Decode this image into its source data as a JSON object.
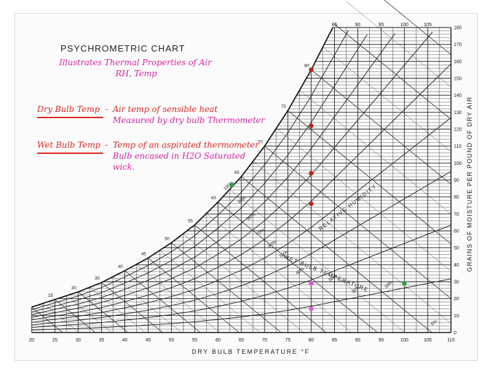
{
  "chart_data": {
    "type": "psychrometric",
    "title": "PSYCHROMETRIC CHART",
    "xlabel": "DRY BULB TEMPERATURE °F",
    "ylabel": "GRAINS OF MOISTURE PER POUND OF DRY AIR",
    "xlim": [
      20,
      110
    ],
    "ylim": [
      0,
      180
    ],
    "x_ticks": [
      "20",
      "25",
      "30",
      "35",
      "40",
      "45",
      "50",
      "55",
      "60",
      "65",
      "70",
      "75",
      "80",
      "85",
      "90",
      "95",
      "100",
      "105",
      "110"
    ],
    "y_ticks": [
      "0",
      "10",
      "20",
      "30",
      "40",
      "50",
      "60",
      "70",
      "80",
      "90",
      "100",
      "110",
      "120",
      "130",
      "140",
      "150",
      "160",
      "170",
      "180"
    ],
    "top_ticks": [
      "85",
      "90",
      "95",
      "100",
      "105"
    ],
    "saturation_curve": {
      "x": [
        20,
        25,
        30,
        35,
        40,
        45,
        50,
        55,
        60,
        65,
        70,
        75,
        80,
        85
      ],
      "y": [
        15,
        19.5,
        24,
        29.5,
        36.5,
        44,
        53,
        63.5,
        77,
        92,
        110,
        131,
        155,
        182
      ]
    },
    "wet_bulb_labels": [
      "25",
      "30",
      "35",
      "40",
      "45",
      "50",
      "55",
      "60",
      "65",
      "70",
      "75",
      "80",
      "85"
    ],
    "rh_labels": [
      "100%",
      "90%",
      "80%",
      "70%",
      "60%",
      "50%",
      "40%",
      "30%",
      "20%",
      "10%",
      "6%"
    ],
    "axis_text": [
      "RELATIVE HUMIDITY",
      "WET BULB TEMPERATURE"
    ],
    "points": [
      {
        "x": 80,
        "y": 155,
        "color": "#b3261e"
      },
      {
        "x": 80,
        "y": 122,
        "color": "#b3261e"
      },
      {
        "x": 80,
        "y": 94,
        "color": "#b3261e"
      },
      {
        "x": 80,
        "y": 76,
        "color": "#b3261e"
      },
      {
        "x": 80,
        "y": 29,
        "color": "#d65bd3"
      },
      {
        "x": 80,
        "y": 14,
        "color": "#d65bd3"
      },
      {
        "x": 63,
        "y": 87,
        "color": "#2e9e3e"
      },
      {
        "x": 100,
        "y": 29,
        "color": "#2e9e3e"
      }
    ],
    "grid": true
  },
  "annotations": {
    "line1": "Illustrates Thermal Properties of Air",
    "line2": "RH, Temp",
    "dry_label": "Dry Bulb Temp",
    "dry_dash": "-",
    "dry_desc1": "Air temp of sensible heat",
    "dry_desc2": "Measured by dry bulb Thermometer",
    "wet_label": "Wet Bulb Temp",
    "wet_dash": "-",
    "wet_desc1": "Temp of an aspirated thermometer",
    "wet_desc2": "Bulb encased in H2O Saturated",
    "wet_desc3": "wick."
  },
  "colors": {
    "pink": "#d6249f",
    "red": "#e0271e",
    "ink": "#1a1a1a"
  }
}
